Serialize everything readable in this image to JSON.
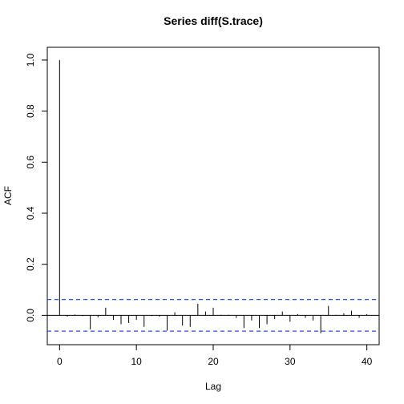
{
  "chart_data": {
    "type": "bar",
    "title": "Series  diff(S.trace)",
    "xlabel": "Lag",
    "ylabel": "ACF",
    "xlim": [
      -1.6,
      41.6
    ],
    "ylim": [
      -0.115,
      1.05
    ],
    "x_ticks": [
      0,
      10,
      20,
      30,
      40
    ],
    "y_ticks": [
      0.0,
      0.2,
      0.4,
      0.6,
      0.8,
      1.0
    ],
    "x_tick_labels": [
      "0",
      "10",
      "20",
      "30",
      "40"
    ],
    "y_tick_labels": [
      "0.0",
      "0.2",
      "0.4",
      "0.6",
      "0.8",
      "1.0"
    ],
    "confidence_band": 0.062,
    "confidence_color": "#2b4fd8",
    "lags": [
      0,
      1,
      2,
      3,
      4,
      5,
      6,
      7,
      8,
      9,
      10,
      11,
      12,
      13,
      14,
      15,
      16,
      17,
      18,
      19,
      20,
      21,
      22,
      23,
      24,
      25,
      26,
      27,
      28,
      29,
      30,
      31,
      32,
      33,
      34,
      35,
      36,
      37,
      38,
      39,
      40
    ],
    "acf": [
      1.0,
      -0.005,
      0.003,
      -0.003,
      -0.055,
      -0.008,
      0.03,
      -0.018,
      -0.035,
      -0.03,
      -0.018,
      -0.045,
      -0.003,
      -0.005,
      -0.06,
      0.012,
      -0.04,
      -0.045,
      0.045,
      0.015,
      0.03,
      0.002,
      0.002,
      -0.01,
      -0.05,
      -0.02,
      -0.05,
      -0.035,
      -0.015,
      0.015,
      -0.025,
      0.005,
      -0.01,
      -0.02,
      -0.07,
      0.037,
      0.002,
      0.008,
      0.018,
      -0.01,
      0.005
    ]
  }
}
